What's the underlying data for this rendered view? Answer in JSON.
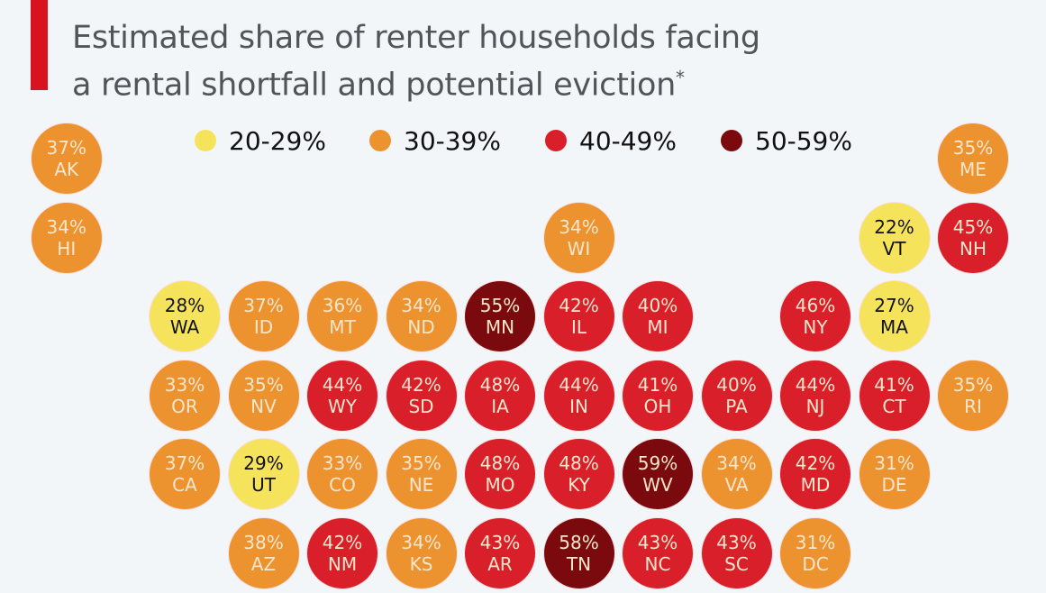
{
  "title": {
    "line1": "Estimated share of renter households facing",
    "line2": "a rental shortfall and potential eviction",
    "footnote_mark": "*"
  },
  "legend": [
    {
      "label": "20-29%",
      "color": "#f6e35c"
    },
    {
      "label": "30-39%",
      "color": "#ec9330"
    },
    {
      "label": "40-49%",
      "color": "#d81f2a"
    },
    {
      "label": "50-59%",
      "color": "#7a0a0e"
    }
  ],
  "chart_data": {
    "type": "tile-map",
    "unit": "%",
    "states": [
      {
        "code": "AK",
        "value": 37
      },
      {
        "code": "ME",
        "value": 35
      },
      {
        "code": "HI",
        "value": 34
      },
      {
        "code": "WI",
        "value": 34
      },
      {
        "code": "VT",
        "value": 22
      },
      {
        "code": "NH",
        "value": 45
      },
      {
        "code": "WA",
        "value": 28
      },
      {
        "code": "ID",
        "value": 37
      },
      {
        "code": "MT",
        "value": 36
      },
      {
        "code": "ND",
        "value": 34
      },
      {
        "code": "MN",
        "value": 55
      },
      {
        "code": "IL",
        "value": 42
      },
      {
        "code": "MI",
        "value": 40
      },
      {
        "code": "NY",
        "value": 46
      },
      {
        "code": "MA",
        "value": 27
      },
      {
        "code": "OR",
        "value": 33
      },
      {
        "code": "NV",
        "value": 35
      },
      {
        "code": "WY",
        "value": 44
      },
      {
        "code": "SD",
        "value": 42
      },
      {
        "code": "IA",
        "value": 48
      },
      {
        "code": "IN",
        "value": 44
      },
      {
        "code": "OH",
        "value": 41
      },
      {
        "code": "PA",
        "value": 40
      },
      {
        "code": "NJ",
        "value": 44
      },
      {
        "code": "CT",
        "value": 41
      },
      {
        "code": "RI",
        "value": 35
      },
      {
        "code": "CA",
        "value": 37
      },
      {
        "code": "UT",
        "value": 29
      },
      {
        "code": "CO",
        "value": 33
      },
      {
        "code": "NE",
        "value": 35
      },
      {
        "code": "MO",
        "value": 48
      },
      {
        "code": "KY",
        "value": 48
      },
      {
        "code": "WV",
        "value": 59
      },
      {
        "code": "VA",
        "value": 34
      },
      {
        "code": "MD",
        "value": 42
      },
      {
        "code": "DE",
        "value": 31
      },
      {
        "code": "AZ",
        "value": 38
      },
      {
        "code": "NM",
        "value": 42
      },
      {
        "code": "KS",
        "value": 34
      },
      {
        "code": "AR",
        "value": 43
      },
      {
        "code": "TN",
        "value": 58
      },
      {
        "code": "NC",
        "value": 43
      },
      {
        "code": "SC",
        "value": 43
      },
      {
        "code": "DC",
        "value": 31
      }
    ]
  }
}
